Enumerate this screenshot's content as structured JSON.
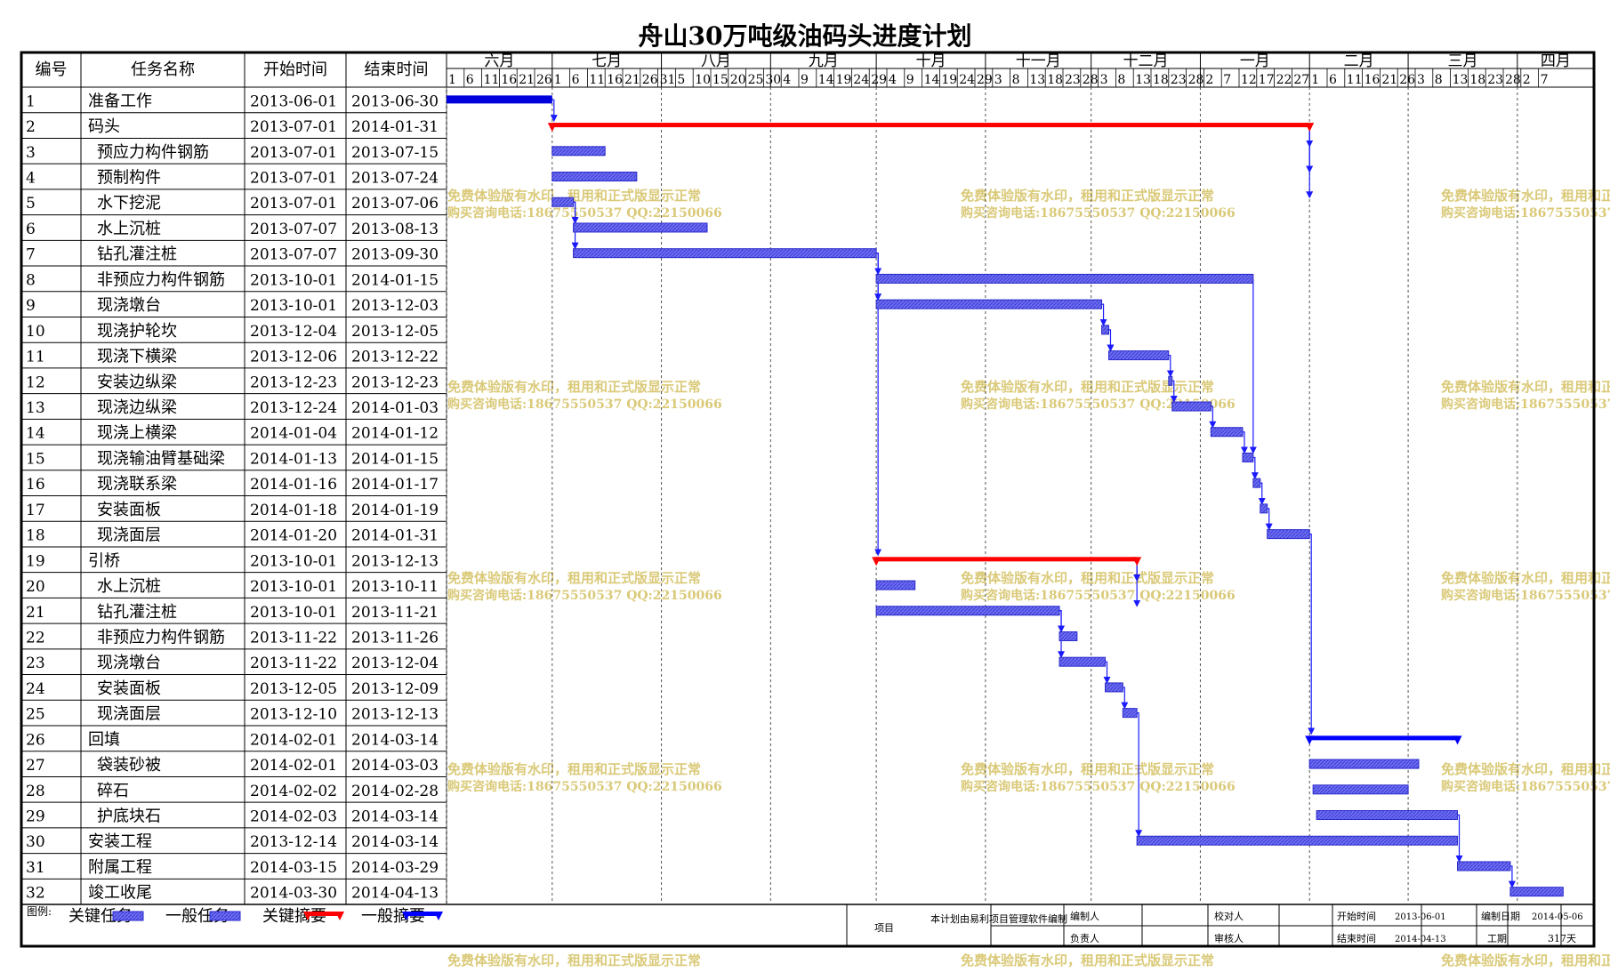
{
  "title": "舟山30万吨级油码头进度计划",
  "headers": {
    "id": "编号",
    "name": "任务名称",
    "start": "开始时间",
    "end": "结束时间"
  },
  "months": [
    "六月",
    "七月",
    "八月",
    "九月",
    "十月",
    "十一月",
    "十二月",
    "一月",
    "二月",
    "三月",
    "四月"
  ],
  "day_ticks": [
    [
      "1",
      "6",
      "11",
      "16",
      "21",
      "26"
    ],
    [
      "1",
      "6",
      "11",
      "16",
      "21",
      "26",
      "31"
    ],
    [
      "5",
      "10",
      "15",
      "20",
      "25",
      "30"
    ],
    [
      "4",
      "9",
      "14",
      "19",
      "24",
      "29"
    ],
    [
      "4",
      "9",
      "14",
      "19",
      "24",
      "29"
    ],
    [
      "3",
      "8",
      "13",
      "18",
      "23",
      "28"
    ],
    [
      "3",
      "8",
      "13",
      "18",
      "23",
      "28"
    ],
    [
      "2",
      "7",
      "12",
      "17",
      "22",
      "27"
    ],
    [
      "1",
      "6",
      "11",
      "16",
      "21",
      "26"
    ],
    [
      "3",
      "8",
      "13",
      "18",
      "23",
      "28"
    ],
    [
      "2",
      "7"
    ]
  ],
  "watermark": {
    "line1": "免费体验版有水印，租用和正式版显示正常",
    "line2": "购买咨询电话:18675550537 QQ:22150066"
  },
  "legend": {
    "label": "图例:",
    "critical_task": "关键任务",
    "normal_task": "一般任务",
    "critical_summary": "关键摘要",
    "normal_summary": "一般摘要"
  },
  "footer": {
    "project_label": "项目",
    "software_note": "本计划由易利项目管理软件编制",
    "preparer_label": "编制人",
    "checker_label": "校对人",
    "responsible_label": "负责人",
    "reviewer_label": "审核人",
    "start_label": "开始时间",
    "start_value": "2013-06-01",
    "prep_date_label": "编制日期",
    "prep_date_value": "2014-05-06",
    "end_label": "结束时间",
    "end_value": "2014-04-13",
    "duration_label": "工期",
    "duration_value": "317天"
  },
  "colors": {
    "critical_summary": "#ff0000",
    "normal_summary": "#0000ff",
    "task_fill": "#6e6ef0",
    "critical_task_fill": "#0000dd",
    "link": "#1a1aff",
    "watermark": "#d6c46a",
    "grid": "#000000"
  },
  "chart_data": {
    "type": "gantt",
    "title": "舟山30万吨级油码头进度计划",
    "timeline_start": "2013-06-01",
    "timeline_end": "2014-04-09",
    "tasks": [
      {
        "id": "1",
        "name": "准备工作",
        "start": "2013-06-01",
        "end": "2013-06-30",
        "kind": "critical_task",
        "level": 0
      },
      {
        "id": "2",
        "name": "码头",
        "start": "2013-07-01",
        "end": "2014-01-31",
        "kind": "critical_summary",
        "level": 0
      },
      {
        "id": "3",
        "name": "预应力构件钢筋",
        "start": "2013-07-01",
        "end": "2013-07-15",
        "kind": "task",
        "level": 1
      },
      {
        "id": "4",
        "name": "预制构件",
        "start": "2013-07-01",
        "end": "2013-07-24",
        "kind": "task",
        "level": 1
      },
      {
        "id": "5",
        "name": "水下挖泥",
        "start": "2013-07-01",
        "end": "2013-07-06",
        "kind": "task",
        "level": 1
      },
      {
        "id": "6",
        "name": "水上沉桩",
        "start": "2013-07-07",
        "end": "2013-08-13",
        "kind": "task",
        "level": 1
      },
      {
        "id": "7",
        "name": "钻孔灌注桩",
        "start": "2013-07-07",
        "end": "2013-09-30",
        "kind": "task",
        "level": 1
      },
      {
        "id": "8",
        "name": "非预应力构件钢筋",
        "start": "2013-10-01",
        "end": "2014-01-15",
        "kind": "task",
        "level": 1
      },
      {
        "id": "9",
        "name": "现浇墩台",
        "start": "2013-10-01",
        "end": "2013-12-03",
        "kind": "task",
        "level": 1
      },
      {
        "id": "10",
        "name": "现浇护轮坎",
        "start": "2013-12-04",
        "end": "2013-12-05",
        "kind": "task",
        "level": 1
      },
      {
        "id": "11",
        "name": "现浇下横梁",
        "start": "2013-12-06",
        "end": "2013-12-22",
        "kind": "task",
        "level": 1
      },
      {
        "id": "12",
        "name": "安装边纵梁",
        "start": "2013-12-23",
        "end": "2013-12-23",
        "kind": "task",
        "level": 1
      },
      {
        "id": "13",
        "name": "现浇边纵梁",
        "start": "2013-12-24",
        "end": "2014-01-03",
        "kind": "task",
        "level": 1
      },
      {
        "id": "14",
        "name": "现浇上横梁",
        "start": "2014-01-04",
        "end": "2014-01-12",
        "kind": "task",
        "level": 1
      },
      {
        "id": "15",
        "name": "现浇输油臂基础梁",
        "start": "2014-01-13",
        "end": "2014-01-15",
        "kind": "task",
        "level": 1
      },
      {
        "id": "16",
        "name": "现浇联系梁",
        "start": "2014-01-16",
        "end": "2014-01-17",
        "kind": "task",
        "level": 1
      },
      {
        "id": "17",
        "name": "安装面板",
        "start": "2014-01-18",
        "end": "2014-01-19",
        "kind": "task",
        "level": 1
      },
      {
        "id": "18",
        "name": "现浇面层",
        "start": "2014-01-20",
        "end": "2014-01-31",
        "kind": "task",
        "level": 1
      },
      {
        "id": "19",
        "name": "引桥",
        "start": "2013-10-01",
        "end": "2013-12-13",
        "kind": "critical_summary",
        "level": 0
      },
      {
        "id": "20",
        "name": "水上沉桩",
        "start": "2013-10-01",
        "end": "2013-10-11",
        "kind": "task",
        "level": 1
      },
      {
        "id": "21",
        "name": "钻孔灌注桩",
        "start": "2013-10-01",
        "end": "2013-11-21",
        "kind": "task",
        "level": 1
      },
      {
        "id": "22",
        "name": "非预应力构件钢筋",
        "start": "2013-11-22",
        "end": "2013-11-26",
        "kind": "task",
        "level": 1
      },
      {
        "id": "23",
        "name": "现浇墩台",
        "start": "2013-11-22",
        "end": "2013-12-04",
        "kind": "task",
        "level": 1
      },
      {
        "id": "24",
        "name": "安装面板",
        "start": "2013-12-05",
        "end": "2013-12-09",
        "kind": "task",
        "level": 1
      },
      {
        "id": "25",
        "name": "现浇面层",
        "start": "2013-12-10",
        "end": "2013-12-13",
        "kind": "task",
        "level": 1
      },
      {
        "id": "26",
        "name": "回填",
        "start": "2014-02-01",
        "end": "2014-03-14",
        "kind": "normal_summary",
        "level": 0
      },
      {
        "id": "27",
        "name": "袋装砂被",
        "start": "2014-02-01",
        "end": "2014-03-03",
        "kind": "task",
        "level": 1
      },
      {
        "id": "28",
        "name": "碎石",
        "start": "2014-02-02",
        "end": "2014-02-28",
        "kind": "task",
        "level": 1
      },
      {
        "id": "29",
        "name": "护底块石",
        "start": "2014-02-03",
        "end": "2014-03-14",
        "kind": "task",
        "level": 1
      },
      {
        "id": "30",
        "name": "安装工程",
        "start": "2013-12-14",
        "end": "2014-03-14",
        "kind": "task",
        "level": 0
      },
      {
        "id": "31",
        "name": "附属工程",
        "start": "2014-03-15",
        "end": "2014-03-29",
        "kind": "task",
        "level": 0
      },
      {
        "id": "32",
        "name": "竣工收尾",
        "start": "2014-03-30",
        "end": "2014-04-13",
        "kind": "task",
        "level": 0
      }
    ],
    "links": [
      [
        "1",
        "2"
      ],
      [
        "2",
        "3"
      ],
      [
        "2",
        "4"
      ],
      [
        "2",
        "5"
      ],
      [
        "5",
        "6"
      ],
      [
        "5",
        "7"
      ],
      [
        "7",
        "8"
      ],
      [
        "7",
        "9"
      ],
      [
        "9",
        "10"
      ],
      [
        "10",
        "11"
      ],
      [
        "11",
        "12"
      ],
      [
        "12",
        "13"
      ],
      [
        "13",
        "14"
      ],
      [
        "8",
        "15"
      ],
      [
        "14",
        "15"
      ],
      [
        "15",
        "16"
      ],
      [
        "16",
        "17"
      ],
      [
        "17",
        "18"
      ],
      [
        "7",
        "19"
      ],
      [
        "19",
        "20"
      ],
      [
        "19",
        "21"
      ],
      [
        "21",
        "22"
      ],
      [
        "21",
        "23"
      ],
      [
        "23",
        "24"
      ],
      [
        "24",
        "25"
      ],
      [
        "18",
        "26"
      ],
      [
        "25",
        "30"
      ],
      [
        "29",
        "31"
      ],
      [
        "31",
        "32"
      ]
    ]
  }
}
